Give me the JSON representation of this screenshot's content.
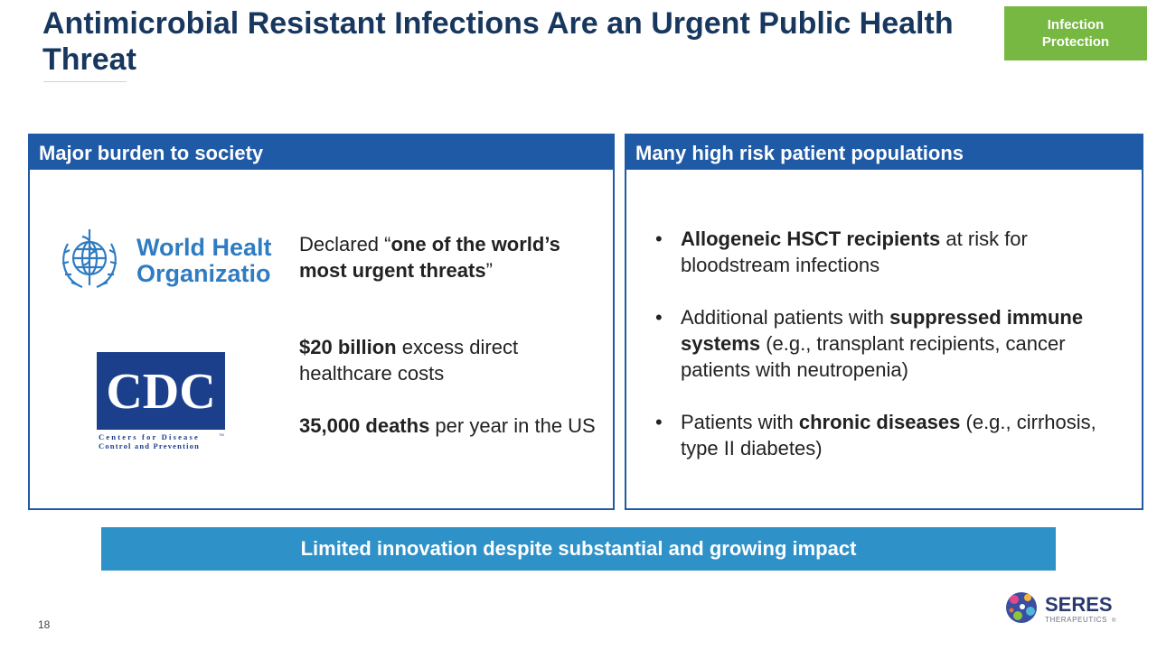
{
  "header": {
    "title": "Antimicrobial Resistant Infections Are an Urgent Public Health Threat",
    "tag": "Infection Protection"
  },
  "left_panel": {
    "heading": "Major burden to society",
    "who_logo": {
      "line1": "World Health",
      "line2": "Organization"
    },
    "cdc_logo": {
      "mark": "CDC",
      "line1": "Centers for Disease",
      "line2": "Control and Prevention",
      "tm": "TM"
    },
    "declared": {
      "pre": "Declared “",
      "bold": "one of the world’s most urgent threats",
      "post": "”"
    },
    "cost": {
      "bold": "$20 billion",
      "rest": " excess direct healthcare costs"
    },
    "deaths": {
      "bold": "35,000 deaths",
      "rest": " per year in the US"
    }
  },
  "right_panel": {
    "heading": "Many high risk patient populations",
    "bullets": [
      {
        "bold": "Allogeneic HSCT recipients",
        "rest": " at risk for bloodstream infections"
      },
      {
        "pre": "Additional patients with ",
        "bold": "suppressed immune systems",
        "rest": " (e.g., transplant recipients, cancer patients with neutropenia)"
      },
      {
        "pre": "Patients with ",
        "bold": "chronic diseases",
        "rest": " (e.g., cirrhosis, type II diabetes)"
      }
    ],
    "bullet_char": "•"
  },
  "banner": "Limited innovation despite substantial and growing impact",
  "footer": {
    "page_number": "18",
    "brand": "SERES",
    "brand_sub": "THERAPEUTICS",
    "brand_tm": "®"
  },
  "colors": {
    "title": "#17375e",
    "panel_blue": "#1f5aa6",
    "banner_blue": "#2e91c8",
    "tag_green": "#77b843"
  }
}
